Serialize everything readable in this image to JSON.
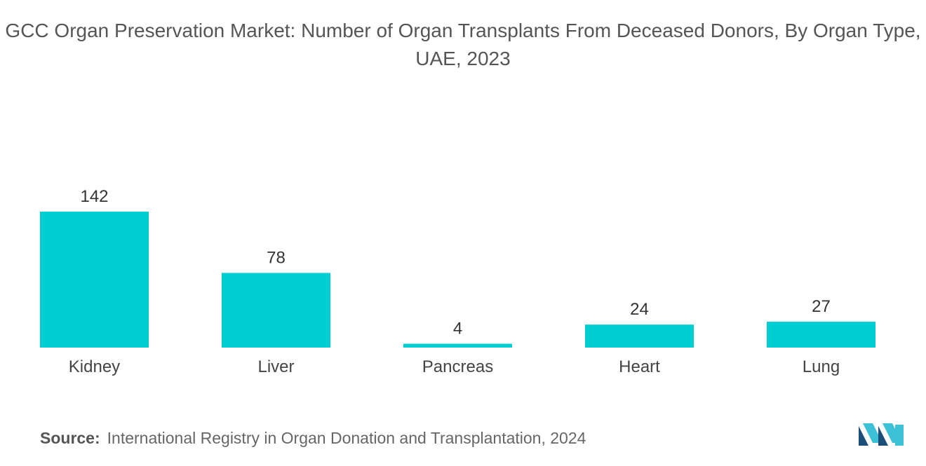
{
  "chart_data": {
    "type": "bar",
    "title": "GCC Organ Preservation Market: Number of Organ Transplants From Deceased Donors, By Organ Type, UAE, 2023",
    "categories": [
      "Kidney",
      "Liver",
      "Pancreas",
      "Heart",
      "Lung"
    ],
    "values": [
      142,
      78,
      4,
      24,
      27
    ],
    "xlabel": "",
    "ylabel": "",
    "ylim": [
      0,
      142
    ],
    "grid": false,
    "bar_color": "#00CED1"
  },
  "source": {
    "label": "Source:",
    "text": "International Registry in Organ Donation and Transplantation, 2024"
  },
  "logo": {
    "icon": "mordor-intelligence-logo",
    "color_dark": "#1B4F7A",
    "color_light": "#3CC1D6"
  }
}
